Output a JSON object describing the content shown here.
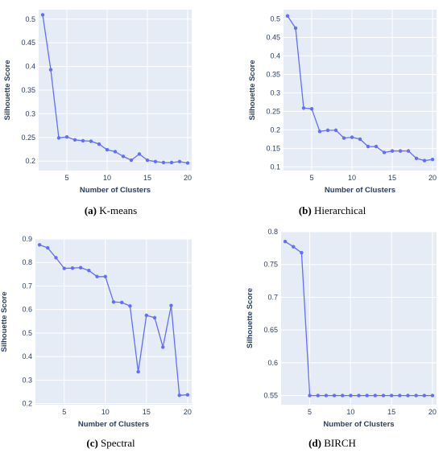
{
  "chart_data": [
    {
      "type": "line",
      "caption_letter": "(a)",
      "caption_text": " K-means",
      "xlabel": "Number of Clusters",
      "ylabel": "Silhouette Score",
      "xlim": [
        1.5,
        20.5
      ],
      "ylim": [
        0.18,
        0.52
      ],
      "x_ticks": [
        5,
        10,
        15,
        20
      ],
      "y_ticks": [
        0.2,
        0.25,
        0.3,
        0.35,
        0.4,
        0.45,
        0.5
      ],
      "y_tick_labels": [
        "0.2",
        "0.25",
        "0.3",
        "0.35",
        "0.4",
        "0.45",
        "0.5"
      ],
      "grid": true,
      "x": [
        2,
        3,
        4,
        5,
        6,
        7,
        8,
        9,
        10,
        11,
        12,
        13,
        14,
        15,
        16,
        17,
        18,
        19,
        20
      ],
      "values": [
        0.509,
        0.393,
        0.249,
        0.251,
        0.245,
        0.243,
        0.242,
        0.236,
        0.224,
        0.22,
        0.21,
        0.202,
        0.215,
        0.202,
        0.199,
        0.197,
        0.197,
        0.199,
        0.196
      ],
      "color": "#636efa"
    },
    {
      "type": "line",
      "caption_letter": "(b)",
      "caption_text": " Hierarchical",
      "xlabel": "Number of Clusters",
      "ylabel": "Silhouette Score",
      "xlim": [
        1.5,
        20.5
      ],
      "ylim": [
        0.09,
        0.525
      ],
      "x_ticks": [
        5,
        10,
        15,
        20
      ],
      "y_ticks": [
        0.1,
        0.15,
        0.2,
        0.25,
        0.3,
        0.35,
        0.4,
        0.45,
        0.5
      ],
      "y_tick_labels": [
        "0.1",
        "0.15",
        "0.2",
        "0.25",
        "0.3",
        "0.35",
        "0.4",
        "0.45",
        "0.5"
      ],
      "grid": true,
      "x": [
        2,
        3,
        4,
        5,
        6,
        7,
        8,
        9,
        10,
        11,
        12,
        13,
        14,
        15,
        16,
        17,
        18,
        19,
        20
      ],
      "values": [
        0.508,
        0.475,
        0.259,
        0.257,
        0.196,
        0.199,
        0.199,
        0.178,
        0.18,
        0.175,
        0.155,
        0.155,
        0.139,
        0.143,
        0.143,
        0.143,
        0.123,
        0.117,
        0.12
      ],
      "color": "#636efa"
    },
    {
      "type": "line",
      "caption_letter": "(c)",
      "caption_text": " Spectral",
      "xlabel": "Number of Clusters",
      "ylabel": "Silhouette Score",
      "xlim": [
        1.5,
        20.5
      ],
      "ylim": [
        0.195,
        0.9
      ],
      "x_ticks": [
        5,
        10,
        15,
        20
      ],
      "y_ticks": [
        0.2,
        0.3,
        0.4,
        0.5,
        0.6,
        0.7,
        0.8,
        0.9
      ],
      "y_tick_labels": [
        "0.2",
        "0.3",
        "0.4",
        "0.5",
        "0.6",
        "0.7",
        "0.8",
        "0.9"
      ],
      "grid": true,
      "x": [
        2,
        3,
        4,
        5,
        6,
        7,
        8,
        9,
        10,
        11,
        12,
        13,
        14,
        15,
        16,
        17,
        18,
        19,
        20
      ],
      "values": [
        0.875,
        0.862,
        0.82,
        0.775,
        0.776,
        0.778,
        0.766,
        0.74,
        0.74,
        0.632,
        0.63,
        0.615,
        0.335,
        0.575,
        0.565,
        0.44,
        0.617,
        0.235,
        0.237
      ],
      "color": "#636efa"
    },
    {
      "type": "line",
      "caption_letter": "(d)",
      "caption_text": " BIRCH",
      "xlabel": "Number of Clusters",
      "ylabel": "Silhouette Score",
      "xlim": [
        1.5,
        20.5
      ],
      "ylim": [
        0.536,
        0.8
      ],
      "x_ticks": [
        5,
        10,
        15,
        20
      ],
      "y_ticks": [
        0.55,
        0.6,
        0.65,
        0.7,
        0.75,
        0.8
      ],
      "y_tick_labels": [
        "0.55",
        "0.6",
        "0.65",
        "0.7",
        "0.75",
        "0.8"
      ],
      "grid": true,
      "x": [
        2,
        3,
        4,
        5,
        6,
        7,
        8,
        9,
        10,
        11,
        12,
        13,
        14,
        15,
        16,
        17,
        18,
        19,
        20
      ],
      "values": [
        0.785,
        0.777,
        0.768,
        0.55,
        0.55,
        0.55,
        0.55,
        0.55,
        0.55,
        0.55,
        0.55,
        0.55,
        0.55,
        0.55,
        0.55,
        0.55,
        0.55,
        0.55,
        0.55
      ],
      "color": "#636efa"
    }
  ]
}
